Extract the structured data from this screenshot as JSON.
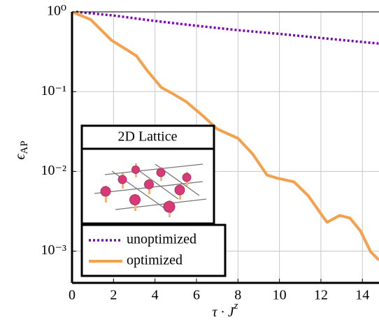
{
  "chart_data": {
    "type": "line",
    "xlabel": "τ · J",
    "xlabel_sup": "z",
    "ylabel": "ϵ",
    "ylabel_sub": "AP",
    "log_y": true,
    "grid": true,
    "xlim": [
      0,
      14.8
    ],
    "xticks": [
      0,
      2,
      4,
      6,
      8,
      10,
      12,
      14
    ],
    "ylim": [
      0.0004,
      1
    ],
    "yticks": [
      {
        "value": 1,
        "label": "10⁰"
      },
      {
        "value": 0.1,
        "label": "10⁻¹"
      },
      {
        "value": 0.01,
        "label": "10⁻²"
      },
      {
        "value": 0.001,
        "label": "10⁻³"
      }
    ],
    "inset_title": "2D Lattice",
    "series": [
      {
        "name": "unoptimized",
        "color": "#7f00bf",
        "dashed": true,
        "x": [
          0.2,
          2,
          4,
          6,
          8,
          10,
          12,
          14.8
        ],
        "values": [
          1,
          0.9,
          0.77,
          0.67,
          0.59,
          0.53,
          0.47,
          0.4
        ]
      },
      {
        "name": "optimized",
        "color": "#f5a04c",
        "dashed": false,
        "x": [
          0,
          0.9,
          1.9,
          2.6,
          3.1,
          3.6,
          4.3,
          4.8,
          5.5,
          6.3,
          7.0,
          8.0,
          8.7,
          9.4,
          9.9,
          10.7,
          11.4,
          12.1,
          12.3,
          12.9,
          13.4,
          13.9,
          14.4,
          14.8
        ],
        "values": [
          1,
          0.8,
          0.44,
          0.34,
          0.28,
          0.187,
          0.113,
          0.096,
          0.075,
          0.05,
          0.034,
          0.026,
          0.0166,
          0.009,
          0.0082,
          0.0074,
          0.0049,
          0.0027,
          0.0023,
          0.0028,
          0.0026,
          0.0018,
          0.00098,
          0.00077
        ]
      }
    ]
  }
}
